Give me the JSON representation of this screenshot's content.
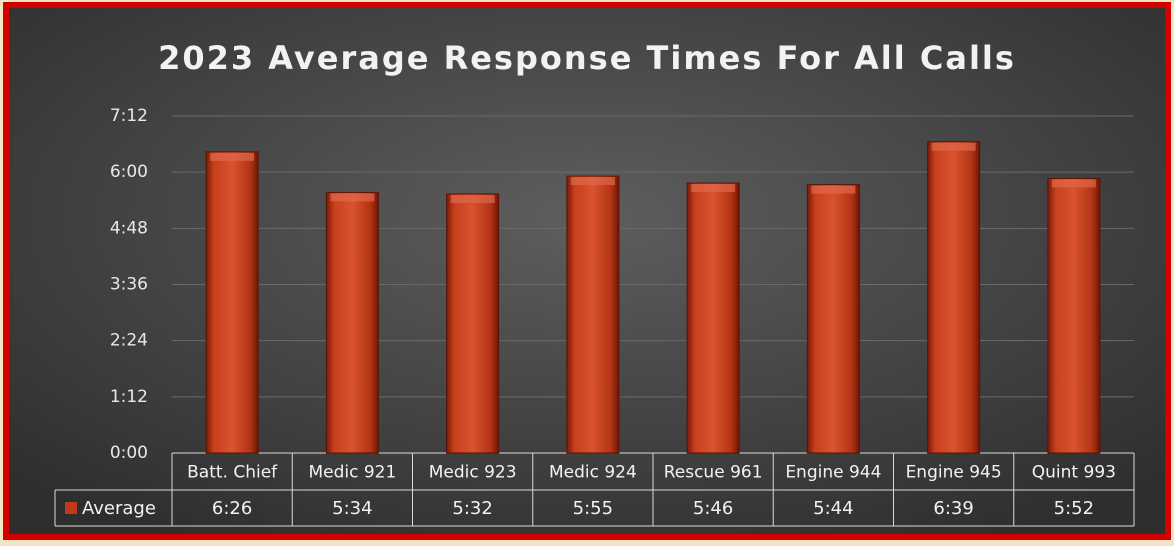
{
  "chart_data": {
    "type": "bar",
    "title": "2023 Average Response Times For All Calls",
    "categories": [
      "Batt. Chief",
      "Medic 921",
      "Medic 923",
      "Medic 924",
      "Rescue 961",
      "Engine 944",
      "Engine 945",
      "Quint 993"
    ],
    "series": [
      {
        "name": "Average",
        "color": "#c0391b",
        "values": [
          386,
          334,
          332,
          355,
          346,
          344,
          399,
          352
        ],
        "value_labels": [
          "6:26",
          "5:34",
          "5:32",
          "5:55",
          "5:46",
          "5:44",
          "6:39",
          "5:52"
        ]
      }
    ],
    "ylim": [
      0,
      432
    ],
    "yticks": [
      {
        "value": 0,
        "label": "0:00"
      },
      {
        "value": 72,
        "label": "1:12"
      },
      {
        "value": 144,
        "label": "2:24"
      },
      {
        "value": 216,
        "label": "3:36"
      },
      {
        "value": 288,
        "label": "4:48"
      },
      {
        "value": 360,
        "label": "6:00"
      },
      {
        "value": 432,
        "label": "7:12"
      }
    ],
    "grid": true
  }
}
